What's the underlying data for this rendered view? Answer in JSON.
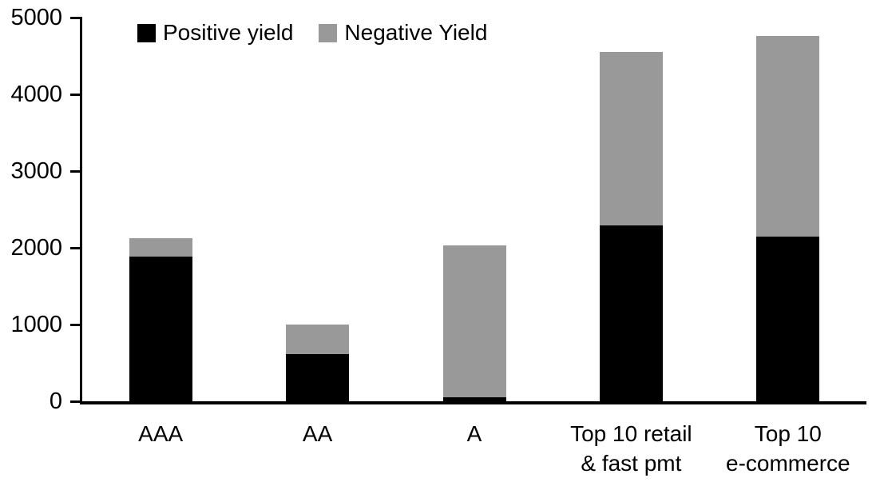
{
  "chart_data": {
    "type": "bar",
    "stacked": true,
    "title": "",
    "xlabel": "",
    "ylabel": "",
    "categories": [
      "AAA",
      "AA",
      "A",
      "Top 10 retail\n& fast pmt",
      "Top 10\ne-commerce"
    ],
    "series": [
      {
        "name": "Positive yield",
        "color": "#000000",
        "values": [
          1890,
          610,
          50,
          2290,
          2150
        ]
      },
      {
        "name": "Negative Yield",
        "color": "#999999",
        "values": [
          230,
          390,
          1980,
          2260,
          2610
        ]
      }
    ],
    "ylim": [
      0,
      5000
    ],
    "yticks": [
      0,
      1000,
      2000,
      3000,
      4000,
      5000
    ],
    "grid": false,
    "legend_position": "top-left-inside"
  },
  "colors": {
    "axis": "#000000",
    "background": "#ffffff",
    "positive": "#000000",
    "negative": "#999999"
  }
}
